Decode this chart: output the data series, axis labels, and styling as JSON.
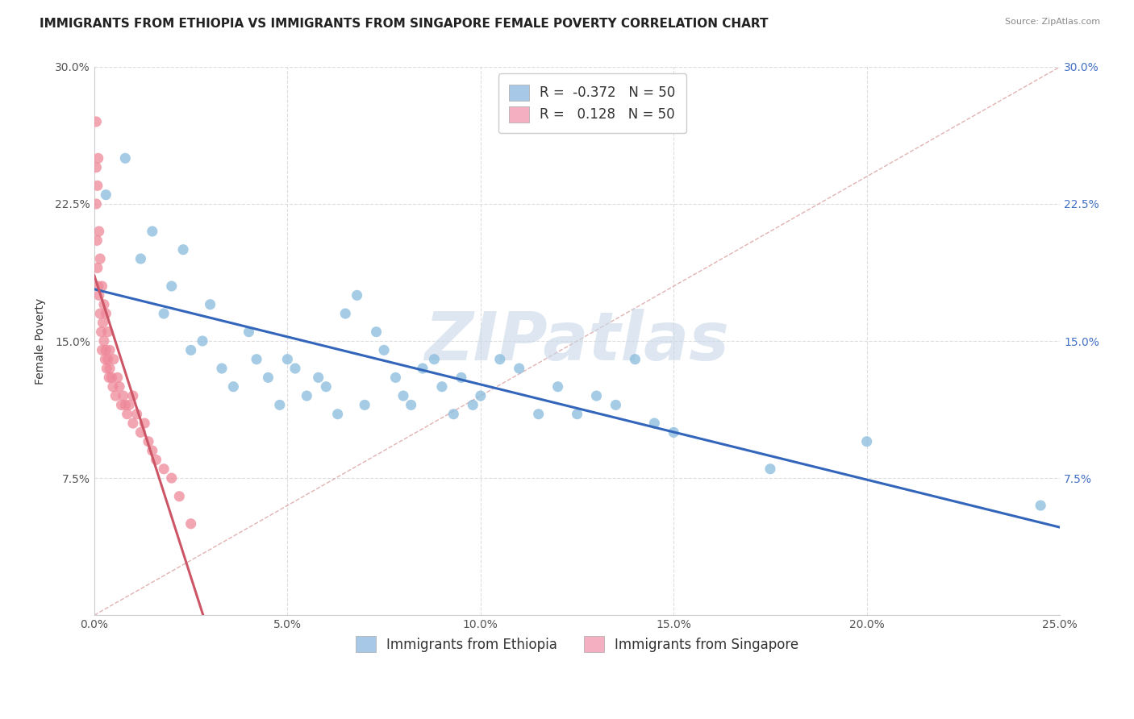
{
  "title": "IMMIGRANTS FROM ETHIOPIA VS IMMIGRANTS FROM SINGAPORE FEMALE POVERTY CORRELATION CHART",
  "source": "Source: ZipAtlas.com",
  "ylabel": "Female Poverty",
  "xlim": [
    0.0,
    25.0
  ],
  "ylim": [
    0.0,
    30.0
  ],
  "xticks": [
    0.0,
    5.0,
    10.0,
    15.0,
    20.0,
    25.0
  ],
  "yticks": [
    0.0,
    7.5,
    15.0,
    22.5,
    30.0
  ],
  "ytick_labels_left": [
    "",
    "7.5%",
    "15.0%",
    "22.5%",
    "30.0%"
  ],
  "ytick_labels_right": [
    "",
    "7.5%",
    "15.0%",
    "22.5%",
    "30.0%"
  ],
  "xtick_labels": [
    "0.0%",
    "5.0%",
    "10.0%",
    "15.0%",
    "20.0%",
    "25.0%"
  ],
  "legend_top": [
    {
      "label": "R =  -0.372   N = 50",
      "color": "#a8c8e8"
    },
    {
      "label": "R =   0.128   N = 50",
      "color": "#f4b0c0"
    }
  ],
  "legend_bottom": [
    {
      "label": "Immigrants from Ethiopia",
      "color": "#a8c8e8"
    },
    {
      "label": "Immigrants from Singapore",
      "color": "#f4b0c0"
    }
  ],
  "ethiopia_x": [
    0.3,
    0.8,
    1.2,
    1.5,
    1.8,
    2.0,
    2.3,
    2.5,
    2.8,
    3.0,
    3.3,
    3.6,
    4.0,
    4.2,
    4.5,
    4.8,
    5.0,
    5.2,
    5.5,
    5.8,
    6.0,
    6.3,
    6.5,
    6.8,
    7.0,
    7.3,
    7.5,
    7.8,
    8.0,
    8.2,
    8.5,
    8.8,
    9.0,
    9.3,
    9.5,
    9.8,
    10.0,
    10.5,
    11.0,
    11.5,
    12.0,
    12.5,
    13.0,
    13.5,
    14.0,
    14.5,
    15.0,
    17.5,
    20.0,
    24.5
  ],
  "ethiopia_y": [
    23.0,
    25.0,
    19.5,
    21.0,
    16.5,
    18.0,
    20.0,
    14.5,
    15.0,
    17.0,
    13.5,
    12.5,
    15.5,
    14.0,
    13.0,
    11.5,
    14.0,
    13.5,
    12.0,
    13.0,
    12.5,
    11.0,
    16.5,
    17.5,
    11.5,
    15.5,
    14.5,
    13.0,
    12.0,
    11.5,
    13.5,
    14.0,
    12.5,
    11.0,
    13.0,
    11.5,
    12.0,
    14.0,
    13.5,
    11.0,
    12.5,
    11.0,
    12.0,
    11.5,
    14.0,
    10.5,
    10.0,
    8.0,
    9.5,
    6.0
  ],
  "singapore_x": [
    0.05,
    0.05,
    0.05,
    0.07,
    0.08,
    0.08,
    0.1,
    0.1,
    0.12,
    0.12,
    0.15,
    0.15,
    0.18,
    0.2,
    0.2,
    0.22,
    0.25,
    0.25,
    0.28,
    0.3,
    0.3,
    0.32,
    0.35,
    0.35,
    0.38,
    0.4,
    0.4,
    0.45,
    0.48,
    0.5,
    0.55,
    0.6,
    0.65,
    0.7,
    0.75,
    0.8,
    0.85,
    0.9,
    1.0,
    1.0,
    1.1,
    1.2,
    1.3,
    1.4,
    1.5,
    1.6,
    1.8,
    2.0,
    2.2,
    2.5
  ],
  "singapore_y": [
    27.0,
    24.5,
    22.5,
    20.5,
    19.0,
    23.5,
    18.0,
    25.0,
    17.5,
    21.0,
    16.5,
    19.5,
    15.5,
    14.5,
    18.0,
    16.0,
    15.0,
    17.0,
    14.0,
    14.5,
    16.5,
    13.5,
    14.0,
    15.5,
    13.0,
    13.5,
    14.5,
    13.0,
    12.5,
    14.0,
    12.0,
    13.0,
    12.5,
    11.5,
    12.0,
    11.5,
    11.0,
    11.5,
    10.5,
    12.0,
    11.0,
    10.0,
    10.5,
    9.5,
    9.0,
    8.5,
    8.0,
    7.5,
    6.5,
    5.0
  ],
  "scatter_color_ethiopia": "#88bbdd",
  "scatter_color_singapore": "#ee8899",
  "trendline_color_ethiopia": "#3366bb",
  "trendline_color_singapore": "#cc5566",
  "diag_line_color": "#ddaaaa",
  "watermark_text": "ZIPatlas",
  "watermark_color": "#c8d8e8",
  "background_color": "#ffffff",
  "grid_color": "#dddddd",
  "title_fontsize": 11,
  "axis_label_fontsize": 10,
  "tick_fontsize": 10,
  "legend_fontsize": 12
}
